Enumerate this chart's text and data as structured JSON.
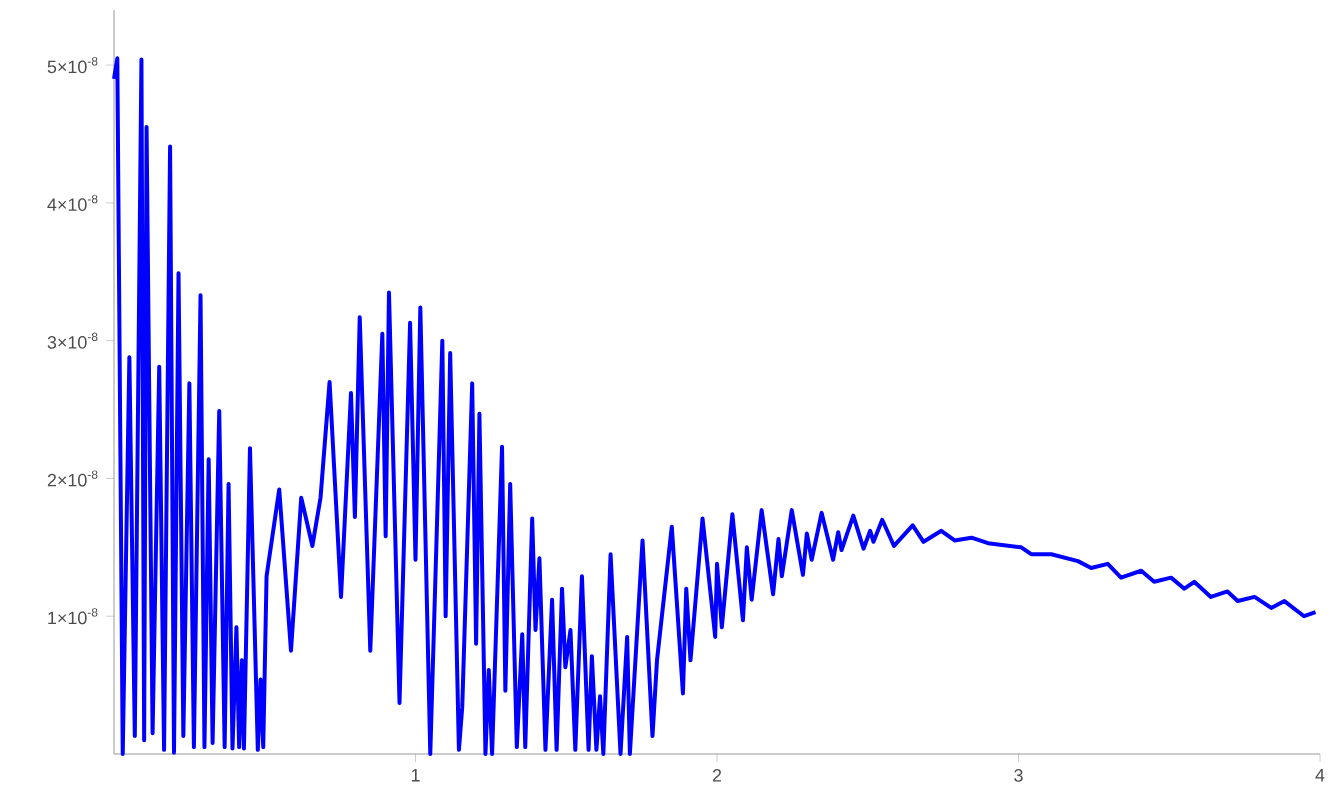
{
  "chart_data": {
    "type": "line",
    "color": "#0000ff",
    "x": [
      0.0,
      0.011,
      0.029,
      0.051,
      0.069,
      0.091,
      0.1,
      0.108,
      0.128,
      0.15,
      0.166,
      0.186,
      0.199,
      0.214,
      0.23,
      0.25,
      0.265,
      0.287,
      0.3,
      0.314,
      0.327,
      0.349,
      0.367,
      0.38,
      0.393,
      0.406,
      0.415,
      0.424,
      0.431,
      0.451,
      0.477,
      0.486,
      0.495,
      0.506,
      0.548,
      0.587,
      0.621,
      0.658,
      0.685,
      0.715,
      0.753,
      0.786,
      0.799,
      0.815,
      0.85,
      0.89,
      0.901,
      0.912,
      0.947,
      0.982,
      1.0,
      1.016,
      1.049,
      1.089,
      1.1,
      1.115,
      1.144,
      1.155,
      1.188,
      1.201,
      1.212,
      1.232,
      1.243,
      1.254,
      1.287,
      1.298,
      1.314,
      1.336,
      1.354,
      1.364,
      1.387,
      1.398,
      1.411,
      1.431,
      1.453,
      1.468,
      1.486,
      1.497,
      1.514,
      1.53,
      1.552,
      1.574,
      1.585,
      1.6,
      1.612,
      1.623,
      1.647,
      1.68,
      1.702,
      1.711,
      1.753,
      1.786,
      1.801,
      1.85,
      1.887,
      1.898,
      1.912,
      1.952,
      1.994,
      2.0,
      2.016,
      2.051,
      2.086,
      2.099,
      2.115,
      2.148,
      2.186,
      2.204,
      2.215,
      2.248,
      2.285,
      2.298,
      2.314,
      2.347,
      2.385,
      2.402,
      2.413,
      2.452,
      2.486,
      2.508,
      2.519,
      2.548,
      2.587,
      2.649,
      2.685,
      2.744,
      2.788,
      2.844,
      2.899,
      3.009,
      3.042,
      3.109,
      3.197,
      3.241,
      3.296,
      3.34,
      3.407,
      3.45,
      3.506,
      3.55,
      3.583,
      3.638,
      3.693,
      3.727,
      3.783,
      3.838,
      3.882,
      3.947,
      3.985
    ],
    "values": [
      4.9e-08,
      5.05e-08,
      0.0,
      2.88e-08,
      1.3e-09,
      5.04e-08,
      1e-09,
      4.55e-08,
      1.5e-09,
      2.81e-08,
      3e-10,
      4.41e-08,
      1e-10,
      3.49e-08,
      1.3e-09,
      2.69e-08,
      5e-10,
      3.33e-08,
      5e-10,
      2.14e-08,
      8e-10,
      2.49e-08,
      5e-10,
      1.96e-08,
      4e-10,
      9.2e-09,
      5e-10,
      6.8e-09,
      4e-10,
      2.22e-08,
      3e-10,
      5.4e-09,
      5e-10,
      1.29e-08,
      1.92e-08,
      7.5e-09,
      1.86e-08,
      1.51e-08,
      1.86e-08,
      2.7e-08,
      1.14e-08,
      2.62e-08,
      1.72e-08,
      3.17e-08,
      7.5e-09,
      3.05e-08,
      1.58e-08,
      3.35e-08,
      3.7e-09,
      3.13e-08,
      1.41e-08,
      3.24e-08,
      0.0,
      3e-08,
      1e-08,
      2.91e-08,
      3e-10,
      3.4e-09,
      2.69e-08,
      8e-09,
      2.47e-08,
      0.0,
      6.1e-09,
      0.0,
      2.23e-08,
      4.6e-09,
      1.96e-08,
      5e-10,
      8.7e-09,
      5e-10,
      1.71e-08,
      9e-09,
      1.42e-08,
      3e-10,
      1.12e-08,
      3e-10,
      1.2e-08,
      6.3e-09,
      9e-09,
      3e-10,
      1.29e-08,
      3e-10,
      7.1e-09,
      3e-10,
      4.2e-09,
      0.0,
      1.45e-08,
      0.0,
      8.5e-09,
      0.0,
      1.55e-08,
      1.3e-09,
      6.8e-09,
      1.65e-08,
      4.4e-09,
      1.2e-08,
      6.8e-09,
      1.71e-08,
      8.5e-09,
      1.38e-08,
      9.2e-09,
      1.74e-08,
      9.7e-09,
      1.5e-08,
      1.12e-08,
      1.77e-08,
      1.16e-08,
      1.56e-08,
      1.29e-08,
      1.77e-08,
      1.3e-08,
      1.6e-08,
      1.41e-08,
      1.75e-08,
      1.41e-08,
      1.61e-08,
      1.48e-08,
      1.73e-08,
      1.49e-08,
      1.62e-08,
      1.54e-08,
      1.7e-08,
      1.51e-08,
      1.66e-08,
      1.54e-08,
      1.62e-08,
      1.55e-08,
      1.57e-08,
      1.53e-08,
      1.5e-08,
      1.45e-08,
      1.45e-08,
      1.4e-08,
      1.35e-08,
      1.38e-08,
      1.28e-08,
      1.33e-08,
      1.25e-08,
      1.28e-08,
      1.2e-08,
      1.25e-08,
      1.14e-08,
      1.18e-08,
      1.11e-08,
      1.14e-08,
      1.06e-08,
      1.11e-08,
      1e-08,
      1.03e-08
    ],
    "xlim": [
      0,
      4
    ],
    "ylim": [
      0,
      5.4e-08
    ],
    "xticks": [
      1,
      2,
      3,
      4
    ],
    "yticks": [
      {
        "value": 1e-08,
        "label": "1×10$^{-8}$"
      },
      {
        "value": 2e-08,
        "label": "2×10$^{-8}$"
      },
      {
        "value": 3e-08,
        "label": "3×10$^{-8}$"
      },
      {
        "value": 4e-08,
        "label": "4×10$^{-8}$"
      },
      {
        "value": 5e-08,
        "label": "5×10$^{-8}$"
      }
    ]
  }
}
